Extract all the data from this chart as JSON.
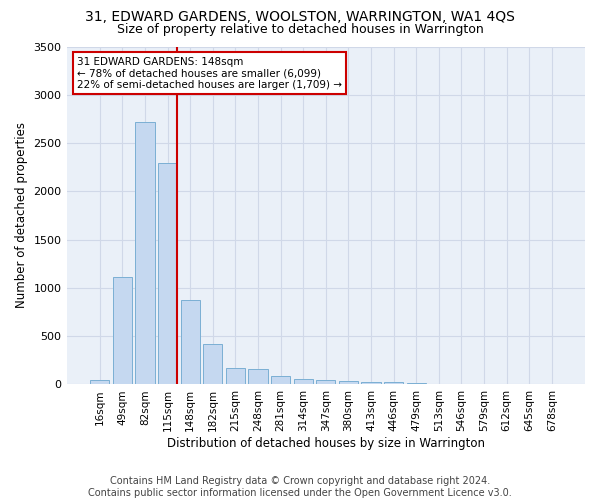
{
  "title": "31, EDWARD GARDENS, WOOLSTON, WARRINGTON, WA1 4QS",
  "subtitle": "Size of property relative to detached houses in Warrington",
  "xlabel": "Distribution of detached houses by size in Warrington",
  "ylabel": "Number of detached properties",
  "categories": [
    "16sqm",
    "49sqm",
    "82sqm",
    "115sqm",
    "148sqm",
    "182sqm",
    "215sqm",
    "248sqm",
    "281sqm",
    "314sqm",
    "347sqm",
    "380sqm",
    "413sqm",
    "446sqm",
    "479sqm",
    "513sqm",
    "546sqm",
    "579sqm",
    "612sqm",
    "645sqm",
    "678sqm"
  ],
  "values": [
    50,
    1110,
    2720,
    2290,
    870,
    420,
    170,
    160,
    90,
    60,
    50,
    35,
    30,
    25,
    20,
    0,
    0,
    0,
    0,
    0,
    0
  ],
  "bar_color": "#c5d8f0",
  "bar_edge_color": "#7bafd4",
  "vline_color": "#cc0000",
  "vline_x_index": 3,
  "annotation_text": "31 EDWARD GARDENS: 148sqm\n← 78% of detached houses are smaller (6,099)\n22% of semi-detached houses are larger (1,709) →",
  "annotation_box_color": "#ffffff",
  "annotation_box_edge": "#cc0000",
  "ylim": [
    0,
    3500
  ],
  "yticks": [
    0,
    500,
    1000,
    1500,
    2000,
    2500,
    3000,
    3500
  ],
  "grid_color": "#d0d8e8",
  "bg_color": "#eaf0f8",
  "footer": "Contains HM Land Registry data © Crown copyright and database right 2024.\nContains public sector information licensed under the Open Government Licence v3.0.",
  "title_fontsize": 10,
  "subtitle_fontsize": 9,
  "xlabel_fontsize": 8.5,
  "ylabel_fontsize": 8.5,
  "footer_fontsize": 7
}
